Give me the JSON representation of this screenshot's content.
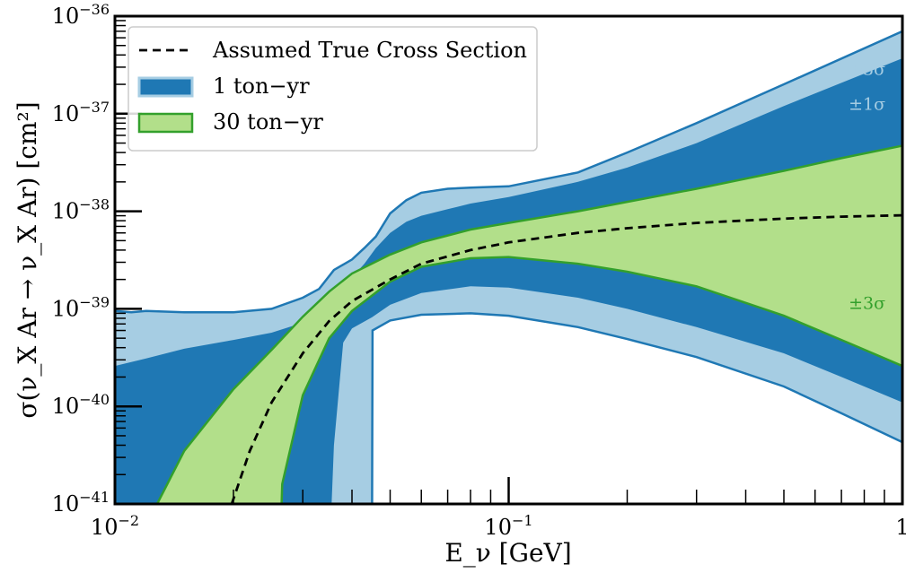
{
  "chart_data": {
    "type": "area",
    "title": "",
    "xlabel": "E_ν [GeV]",
    "ylabel": "σ(ν_X Ar → ν_X Ar) [cm²]",
    "x_scale": "log",
    "y_scale": "log",
    "xlim": [
      0.01,
      1
    ],
    "ylim": [
      1e-41,
      1e-36
    ],
    "grid": false,
    "legend_position": "top-left",
    "x_ticks": [
      {
        "value": 0.01,
        "label": "10",
        "exp": "−2"
      },
      {
        "value": 0.1,
        "label": "10",
        "exp": "−1"
      },
      {
        "value": 1,
        "label": "1",
        "exp": ""
      }
    ],
    "y_ticks": [
      {
        "value": 1e-41,
        "label": "10",
        "exp": "−41"
      },
      {
        "value": 1e-40,
        "label": "10",
        "exp": "−40"
      },
      {
        "value": 1e-39,
        "label": "10",
        "exp": "−39"
      },
      {
        "value": 1e-38,
        "label": "10",
        "exp": "−38"
      },
      {
        "value": 1e-37,
        "label": "10",
        "exp": "−37"
      },
      {
        "value": 1e-36,
        "label": "10",
        "exp": "−36"
      }
    ],
    "colors": {
      "true_line": "#000000",
      "one_ton_3sigma": "#a6cde3",
      "one_ton_1sigma": "#1f78b4",
      "one_ton_edge": "#1f78b4",
      "thirty_ton_fill": "#b2df8a",
      "thirty_ton_edge": "#33a02c"
    },
    "legend": [
      {
        "key": "true",
        "label": "Assumed True Cross Section"
      },
      {
        "key": "one_ton",
        "label": "1 ton−yr"
      },
      {
        "key": "thirty_ton",
        "label": "30 ton−yr"
      }
    ],
    "annotations": [
      {
        "text": "±3σ",
        "series": "one_ton",
        "x": 0.73,
        "y": 2.5e-37
      },
      {
        "text": "±1σ",
        "series": "one_ton",
        "x": 0.73,
        "y": 1.1e-37
      },
      {
        "text": "±3σ",
        "series": "thirty_ton",
        "x": 0.73,
        "y": 1e-39
      }
    ],
    "series": [
      {
        "key": "true",
        "label": "Assumed True Cross Section",
        "style": "dashed",
        "x": [
          0.0198,
          0.022,
          0.025,
          0.03,
          0.035,
          0.04,
          0.05,
          0.06,
          0.08,
          0.1,
          0.15,
          0.2,
          0.3,
          0.5,
          0.7,
          1.0
        ],
        "y": [
          1e-41,
          3.5e-41,
          1.1e-40,
          3.5e-40,
          7.5e-40,
          1.2e-39,
          2e-39,
          2.9e-39,
          4e-39,
          4.8e-39,
          6e-39,
          6.7e-39,
          7.6e-39,
          8.4e-39,
          8.8e-39,
          9.1e-39
        ]
      },
      {
        "key": "one_ton_3sigma",
        "label": "1 ton−yr ±3σ",
        "x_upper": [
          0.01,
          0.011,
          0.012,
          0.015,
          0.02,
          0.025,
          0.03,
          0.033,
          0.036,
          0.04,
          0.043,
          0.046,
          0.05,
          0.055,
          0.06,
          0.07,
          0.08,
          0.1,
          0.15,
          0.2,
          0.3,
          0.5,
          1.0
        ],
        "upper": [
          9.5e-40,
          9.2e-40,
          9.5e-40,
          9.2e-40,
          9.2e-40,
          1e-39,
          1.3e-39,
          1.6e-39,
          2.5e-39,
          3.2e-39,
          4.2e-39,
          5.5e-39,
          9.5e-39,
          1.3e-38,
          1.55e-38,
          1.7e-38,
          1.75e-38,
          1.8e-38,
          2.5e-38,
          4e-38,
          8e-38,
          2e-37,
          7e-37
        ],
        "x_lower": [
          0.01,
          0.045,
          0.0451,
          0.05,
          0.06,
          0.08,
          0.1,
          0.15,
          0.2,
          0.3,
          0.5,
          0.7,
          1.0
        ],
        "lower": [
          1e-41,
          1e-41,
          6e-40,
          7.6e-40,
          8.7e-40,
          9e-40,
          8.5e-40,
          6.5e-40,
          4.9e-40,
          3.2e-40,
          1.6e-40,
          8.5e-41,
          4.3e-41
        ]
      },
      {
        "key": "one_ton_1sigma",
        "label": "1 ton−yr ±1σ",
        "x_upper": [
          0.01,
          0.012,
          0.015,
          0.02,
          0.025,
          0.03,
          0.033,
          0.036,
          0.04,
          0.043,
          0.046,
          0.05,
          0.055,
          0.06,
          0.07,
          0.08,
          0.1,
          0.15,
          0.2,
          0.3,
          0.5,
          1.0
        ],
        "upper": [
          2.6e-40,
          3.1e-40,
          3.9e-40,
          4.8e-40,
          5.7e-40,
          7.2e-40,
          1e-39,
          1.6e-39,
          2.1e-39,
          2.9e-39,
          4.2e-39,
          6e-39,
          7.8e-39,
          9e-39,
          1.05e-38,
          1.2e-38,
          1.4e-38,
          2e-38,
          2.8e-38,
          5e-38,
          1.2e-37,
          3.7e-37
        ],
        "x_lower": [
          0.01,
          0.0355,
          0.036,
          0.038,
          0.04,
          0.045,
          0.05,
          0.06,
          0.08,
          0.1,
          0.15,
          0.2,
          0.3,
          0.5,
          0.7,
          1.0
        ],
        "lower": [
          1e-41,
          1e-41,
          4e-41,
          4.5e-40,
          6.3e-40,
          8.2e-40,
          1.1e-39,
          1.45e-39,
          1.7e-39,
          1.65e-39,
          1.3e-39,
          1e-39,
          6.5e-40,
          3.5e-40,
          2e-40,
          1.1e-40
        ]
      },
      {
        "key": "thirty_ton_3sigma",
        "label": "30 ton−yr ±3σ",
        "x_upper": [
          0.0128,
          0.015,
          0.02,
          0.025,
          0.03,
          0.035,
          0.04,
          0.05,
          0.06,
          0.08,
          0.1,
          0.15,
          0.2,
          0.3,
          0.5,
          0.7,
          1.0
        ],
        "upper": [
          1e-41,
          3.5e-41,
          1.5e-40,
          3.8e-40,
          8.3e-40,
          1.5e-39,
          2.3e-39,
          3.6e-39,
          4.8e-39,
          6.5e-39,
          7.6e-39,
          1e-38,
          1.25e-38,
          1.7e-38,
          2.6e-38,
          3.5e-38,
          4.7e-38
        ],
        "x_lower": [
          0.0128,
          0.0265,
          0.0266,
          0.03,
          0.035,
          0.04,
          0.05,
          0.06,
          0.08,
          0.1,
          0.15,
          0.2,
          0.3,
          0.5,
          0.7,
          1.0
        ],
        "lower": [
          1e-41,
          1e-41,
          1.6e-41,
          1.3e-40,
          5e-40,
          9.5e-40,
          1.9e-39,
          2.7e-39,
          3.3e-39,
          3.4e-39,
          2.9e-39,
          2.4e-39,
          1.7e-39,
          8.5e-40,
          4.8e-40,
          2.6e-40
        ]
      }
    ]
  }
}
